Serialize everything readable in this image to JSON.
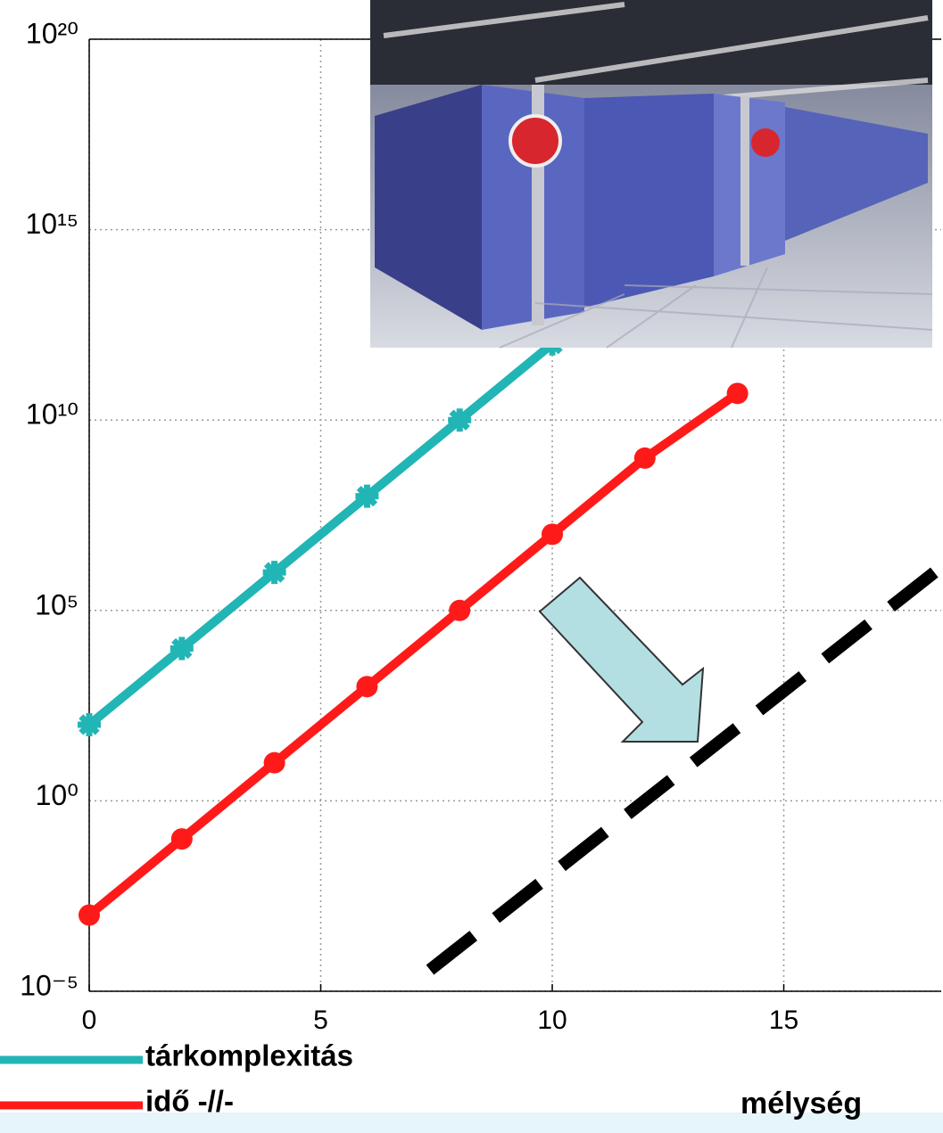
{
  "chart_data": {
    "type": "line",
    "x_label": "mélység",
    "log_y": true,
    "grid": true,
    "xlim": [
      0,
      18.4
    ],
    "xticks": [
      0,
      5,
      10,
      15
    ],
    "ylim": [
      1e-05,
      1e+20
    ],
    "yticks": [
      {
        "value": 1e-05,
        "label": "10⁻⁵"
      },
      {
        "value": 1,
        "label": "10⁰"
      },
      {
        "value": 100000.0,
        "label": "10⁵"
      },
      {
        "value": 10000000000.0,
        "label": "10¹⁰"
      },
      {
        "value": 1000000000000000.0,
        "label": "10¹⁵"
      },
      {
        "value": 1e+20,
        "label": "10²⁰"
      }
    ],
    "series": [
      {
        "name": "tárkomplexitás",
        "color": "#22b5b5",
        "marker": "star",
        "x": [
          0,
          2,
          4,
          6,
          8,
          10
        ],
        "values": [
          100,
          10000,
          1000000,
          100000000,
          10000000000,
          1000000000000
        ]
      },
      {
        "name": "idő -//-",
        "color": "#ff1a1a",
        "marker": "circle",
        "x": [
          0,
          2,
          4,
          6,
          8,
          10,
          12,
          14
        ],
        "values": [
          0.001,
          0.1,
          10,
          1000,
          100000,
          10000000,
          1000000000,
          50000000000
        ]
      }
    ]
  }
}
